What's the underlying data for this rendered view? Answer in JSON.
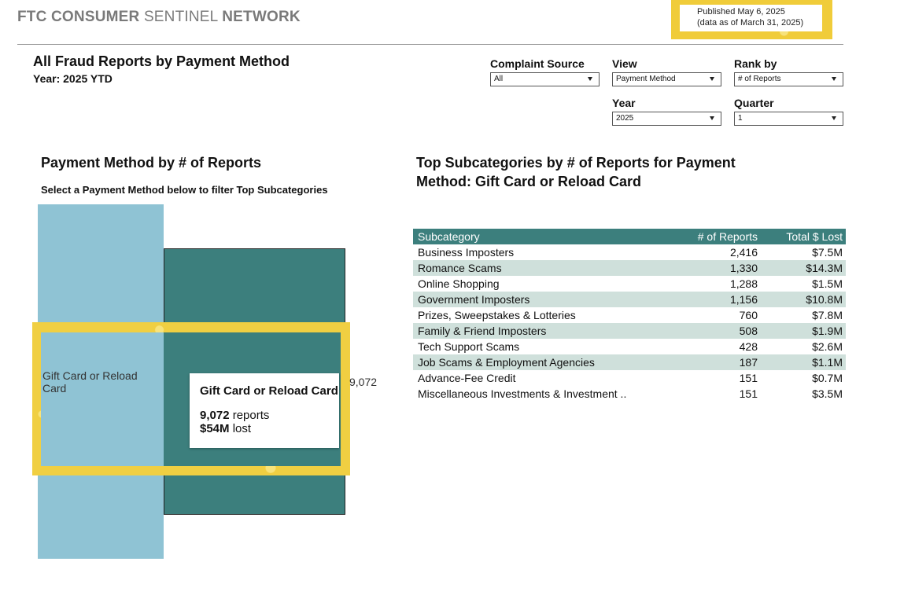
{
  "header": {
    "brand_part1": "FTC CONSUMER",
    "brand_part2": "SENTINEL",
    "brand_part3": "NETWORK",
    "published_line1": "Published May 6, 2025",
    "published_line2": "(data as of March 31, 2025)"
  },
  "page": {
    "title": "All Fraud Reports by Payment Method",
    "year_label": "Year: 2025 YTD"
  },
  "filters": {
    "complaint_source": {
      "label": "Complaint Source",
      "value": "All"
    },
    "view": {
      "label": "View",
      "value": "Payment Method"
    },
    "rank_by": {
      "label": "Rank by",
      "value": "# of Reports"
    },
    "year": {
      "label": "Year",
      "value": "2025"
    },
    "quarter": {
      "label": "Quarter",
      "value": "1"
    }
  },
  "left_panel": {
    "title": "Payment Method by # of Reports",
    "instruction": "Select a Payment Method below to filter Top Subcategories"
  },
  "chart_data": {
    "type": "bar",
    "categories": [
      "Gift Card or Reload Card",
      ""
    ],
    "values": [
      null,
      9072
    ],
    "data_labels": [
      "Gift Card or Reload Card",
      "9,072"
    ],
    "selected": "Gift Card or Reload Card",
    "colors": {
      "bar_light": "#8fc3d4",
      "bar_dark": "#3c7f7d",
      "highlight": "#f0cf42"
    }
  },
  "tooltip": {
    "title": "Gift Card or Reload Card",
    "reports_value": "9,072",
    "reports_text": " reports",
    "lost_value": "$54M",
    "lost_text": " lost"
  },
  "right_panel": {
    "title": "Top Subcategories by # of Reports for Payment Method: Gift Card or Reload Card"
  },
  "table": {
    "columns": [
      "Subcategory",
      "# of Reports",
      "Total $ Lost"
    ],
    "rows": [
      [
        "Business Imposters",
        "2,416",
        "$7.5M"
      ],
      [
        "Romance Scams",
        "1,330",
        "$14.3M"
      ],
      [
        "Online Shopping",
        "1,288",
        "$1.5M"
      ],
      [
        "Government Imposters",
        "1,156",
        "$10.8M"
      ],
      [
        "Prizes, Sweepstakes & Lotteries",
        "760",
        "$7.8M"
      ],
      [
        "Family & Friend Imposters",
        "508",
        "$1.9M"
      ],
      [
        "Tech Support Scams",
        "428",
        "$2.6M"
      ],
      [
        "Job Scams & Employment Agencies",
        "187",
        "$1.1M"
      ],
      [
        "Advance-Fee Credit",
        "151",
        "$0.7M"
      ],
      [
        "Miscellaneous Investments & Investment ..",
        "151",
        "$3.5M"
      ]
    ]
  },
  "colors": {
    "accent": "#3c7f7d",
    "row_alt": "#cfe0db",
    "gold": "#f0cc3a"
  }
}
